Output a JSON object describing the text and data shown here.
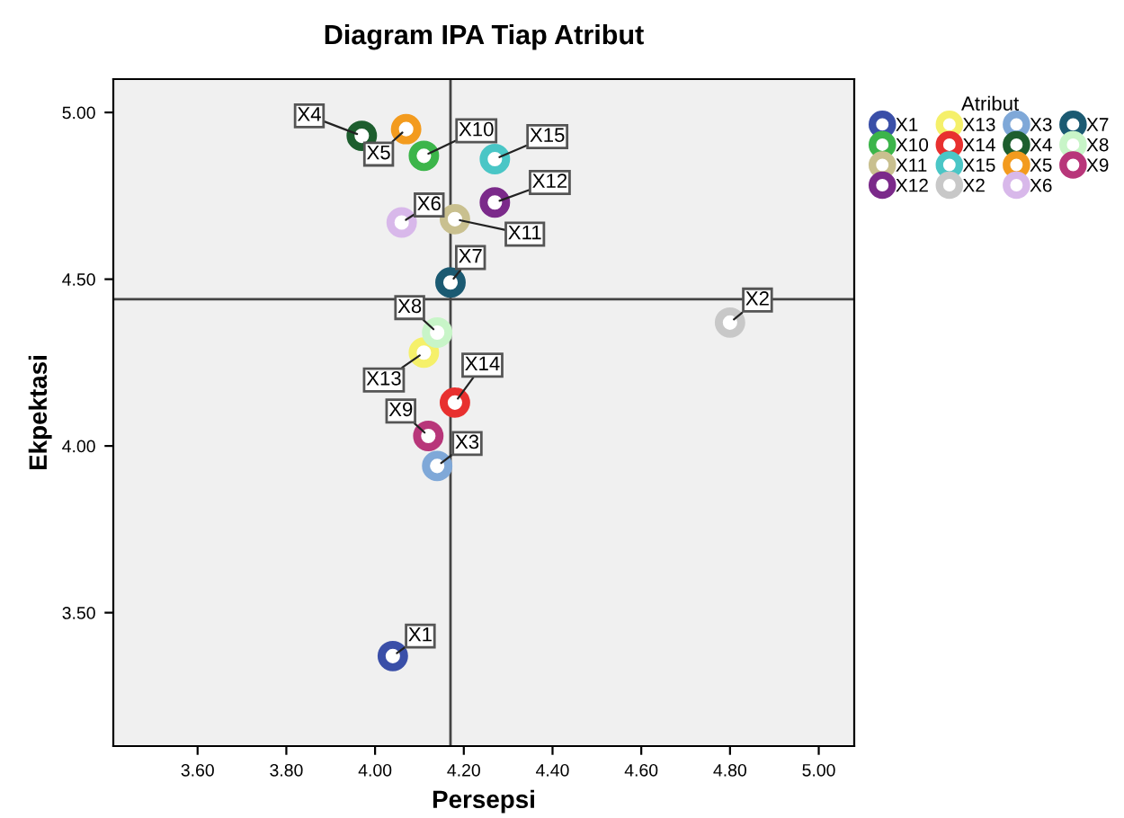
{
  "chart_data": {
    "type": "scatter",
    "title": "Diagram IPA Tiap Atribut",
    "xlabel": "Persepsi",
    "ylabel": "Ekpektasi",
    "legend_title": "Atribut",
    "legend": "right",
    "marker": "circle",
    "grid": false,
    "xlim": [
      3.41,
      5.08
    ],
    "ylim": [
      3.1,
      5.1
    ],
    "xticks": [
      {
        "value": 3.6,
        "label": "3.60"
      },
      {
        "value": 3.8,
        "label": "3.80"
      },
      {
        "value": 4.0,
        "label": "4.00"
      },
      {
        "value": 4.2,
        "label": "4.20"
      },
      {
        "value": 4.4,
        "label": "4.40"
      },
      {
        "value": 4.6,
        "label": "4.60"
      },
      {
        "value": 4.8,
        "label": "4.80"
      },
      {
        "value": 5.0,
        "label": "5.00"
      }
    ],
    "yticks": [
      {
        "value": 3.5,
        "label": "3.50"
      },
      {
        "value": 4.0,
        "label": "4.00"
      },
      {
        "value": 4.5,
        "label": "4.50"
      },
      {
        "value": 5.0,
        "label": "5.00"
      }
    ],
    "ref_lines": [
      {
        "axis": "x",
        "value": 4.17,
        "label": null,
        "color": "#444444"
      },
      {
        "axis": "y",
        "value": 4.44,
        "label": null,
        "color": "#444444"
      }
    ],
    "series": [
      {
        "name": "X1",
        "color": "#3a4fa8",
        "x": [
          4.04
        ],
        "values": [
          3.37
        ]
      },
      {
        "name": "X10",
        "color": "#3cb54a",
        "x": [
          4.11
        ],
        "values": [
          4.87
        ]
      },
      {
        "name": "X11",
        "color": "#c9c08f",
        "x": [
          4.18
        ],
        "values": [
          4.68
        ]
      },
      {
        "name": "X12",
        "color": "#7b2a8a",
        "x": [
          4.27
        ],
        "values": [
          4.73
        ]
      },
      {
        "name": "X13",
        "color": "#f5f06a",
        "x": [
          4.11
        ],
        "values": [
          4.28
        ]
      },
      {
        "name": "X14",
        "color": "#e8302f",
        "x": [
          4.18
        ],
        "values": [
          4.13
        ]
      },
      {
        "name": "X15",
        "color": "#4ac6c6",
        "x": [
          4.27
        ],
        "values": [
          4.86
        ]
      },
      {
        "name": "X2",
        "color": "#c8c8c8",
        "x": [
          4.8
        ],
        "values": [
          4.37
        ]
      },
      {
        "name": "X3",
        "color": "#7fa8d8",
        "x": [
          4.14
        ],
        "values": [
          3.94
        ]
      },
      {
        "name": "X4",
        "color": "#1d5e2e",
        "x": [
          3.97
        ],
        "values": [
          4.93
        ]
      },
      {
        "name": "X5",
        "color": "#f39b1e",
        "x": [
          4.07
        ],
        "values": [
          4.95
        ]
      },
      {
        "name": "X6",
        "color": "#d8b8ea",
        "x": [
          4.06
        ],
        "values": [
          4.67
        ]
      },
      {
        "name": "X7",
        "color": "#1b5a72",
        "x": [
          4.17
        ],
        "values": [
          4.49
        ]
      },
      {
        "name": "X8",
        "color": "#c8f5c8",
        "x": [
          4.14
        ],
        "values": [
          4.34
        ]
      },
      {
        "name": "X9",
        "color": "#b8367a",
        "x": [
          4.12
        ],
        "values": [
          4.03
        ]
      }
    ]
  }
}
